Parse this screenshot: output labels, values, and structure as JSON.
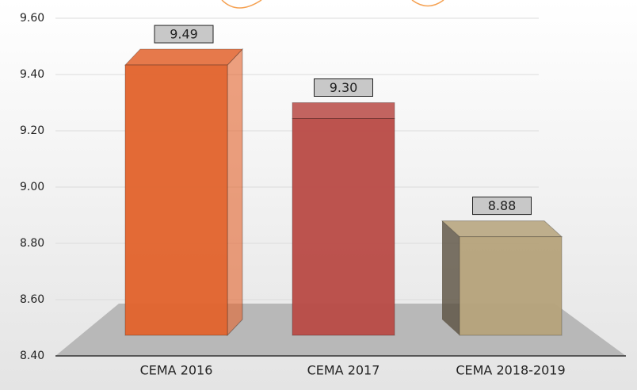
{
  "chart_data": {
    "type": "bar3d",
    "categories": [
      "CEMA 2016",
      "CEMA 2017",
      "CEMA 2018-2019"
    ],
    "values": [
      9.49,
      9.3,
      8.88
    ],
    "value_labels": [
      "9.49",
      "9.30",
      "8.88"
    ],
    "colors": [
      "#e2622b",
      "#b84a45",
      "#b5a27a"
    ],
    "ylim": [
      8.4,
      9.6
    ],
    "yticks": [
      {
        "value": 8.4,
        "label": "8.40"
      },
      {
        "value": 8.6,
        "label": "8.60"
      },
      {
        "value": 8.8,
        "label": "8.80"
      },
      {
        "value": 9,
        "label": "9.00"
      },
      {
        "value": 9.2,
        "label": "9.20"
      },
      {
        "value": 9.4,
        "label": "9.40"
      },
      {
        "value": 9.6,
        "label": "9.60"
      }
    ],
    "grid": true
  }
}
